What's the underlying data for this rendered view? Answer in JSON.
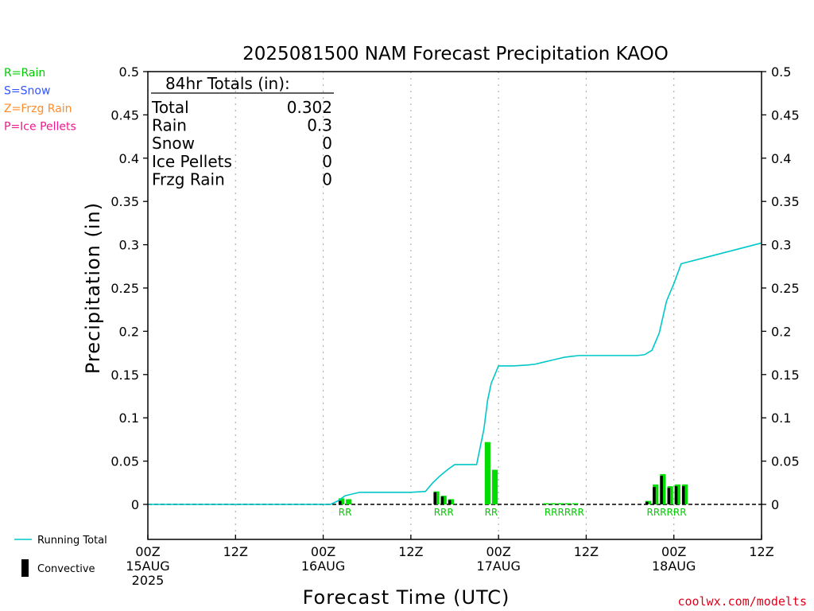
{
  "chart_data": {
    "type": "bar",
    "title": "2025081500 NAM Forecast Precipitation KAOO",
    "ylabel": "Precipitation (in)",
    "xlabel": "Forecast Time (UTC)",
    "ylim": [
      -0.04,
      0.5
    ],
    "xlim_hours": [
      0,
      84
    ],
    "y_ticks": [
      0,
      0.05,
      0.1,
      0.15,
      0.2,
      0.25,
      0.3,
      0.35,
      0.4,
      0.45,
      0.5
    ],
    "y_tick_labels": [
      "0",
      "0.05",
      "0.1",
      "0.15",
      "0.2",
      "0.25",
      "0.3",
      "0.35",
      "0.4",
      "0.45",
      "0.5"
    ],
    "x_ticks": [
      {
        "hour": 0,
        "lines": [
          "00Z",
          "15AUG",
          "2025"
        ]
      },
      {
        "hour": 12,
        "lines": [
          "12Z"
        ]
      },
      {
        "hour": 24,
        "lines": [
          "00Z",
          "16AUG"
        ]
      },
      {
        "hour": 36,
        "lines": [
          "12Z"
        ]
      },
      {
        "hour": 48,
        "lines": [
          "00Z",
          "17AUG"
        ]
      },
      {
        "hour": 60,
        "lines": [
          "12Z"
        ]
      },
      {
        "hour": 72,
        "lines": [
          "00Z",
          "18AUG"
        ]
      },
      {
        "hour": 84,
        "lines": [
          "12Z"
        ]
      }
    ],
    "grid": "vertical dotted at 12Z and 00Z",
    "bars": [
      {
        "hour": 26.5,
        "value": 0.007,
        "convective": 0.004
      },
      {
        "hour": 27.5,
        "value": 0.006,
        "convective": 0.0
      },
      {
        "hour": 39.5,
        "value": 0.015,
        "convective": 0.014
      },
      {
        "hour": 40.5,
        "value": 0.01,
        "convective": 0.009
      },
      {
        "hour": 41.5,
        "value": 0.006,
        "convective": 0.005
      },
      {
        "hour": 46.5,
        "value": 0.072,
        "convective": 0.0
      },
      {
        "hour": 47.5,
        "value": 0.04,
        "convective": 0.0
      },
      {
        "hour": 54.5,
        "value": 0.001,
        "convective": 0.0
      },
      {
        "hour": 55.5,
        "value": 0.001,
        "convective": 0.0
      },
      {
        "hour": 56.5,
        "value": 0.001,
        "convective": 0.0
      },
      {
        "hour": 57.5,
        "value": 0.001,
        "convective": 0.0
      },
      {
        "hour": 58.5,
        "value": 0.001,
        "convective": 0.0
      },
      {
        "hour": 68.5,
        "value": 0.004,
        "convective": 0.003
      },
      {
        "hour": 69.5,
        "value": 0.023,
        "convective": 0.02
      },
      {
        "hour": 70.5,
        "value": 0.035,
        "convective": 0.033
      },
      {
        "hour": 71.5,
        "value": 0.021,
        "convective": 0.019
      },
      {
        "hour": 72.5,
        "value": 0.023,
        "convective": 0.021
      },
      {
        "hour": 73.5,
        "value": 0.023,
        "convective": 0.021
      }
    ],
    "precip_type_labels": [
      {
        "hour": 27,
        "text": "RR"
      },
      {
        "hour": 40.5,
        "text": "RRR"
      },
      {
        "hour": 47,
        "text": "RR"
      },
      {
        "hour": 57,
        "text": "RRRRRR"
      },
      {
        "hour": 71,
        "text": "RRRRRR"
      }
    ],
    "running_total": {
      "name": "Running Total",
      "x": [
        0,
        25,
        26,
        27,
        29,
        36,
        38,
        39,
        40,
        41,
        42,
        43,
        45,
        46,
        46.5,
        47,
        48,
        50,
        52,
        53,
        54,
        55,
        56,
        57,
        58,
        59,
        60,
        66,
        67,
        68,
        69,
        70,
        71,
        72,
        73,
        84
      ],
      "y": [
        0,
        0,
        0.004,
        0.01,
        0.014,
        0.014,
        0.015,
        0.025,
        0.033,
        0.04,
        0.046,
        0.046,
        0.046,
        0.087,
        0.12,
        0.14,
        0.16,
        0.16,
        0.161,
        0.162,
        0.164,
        0.166,
        0.168,
        0.17,
        0.171,
        0.172,
        0.172,
        0.172,
        0.172,
        0.173,
        0.178,
        0.198,
        0.235,
        0.255,
        0.278,
        0.302
      ]
    },
    "totals_box": {
      "header": "84hr Totals (in):",
      "rows": [
        {
          "label": "Total",
          "value": "0.302"
        },
        {
          "label": "Rain",
          "value": "0.3"
        },
        {
          "label": "Snow",
          "value": "0"
        },
        {
          "label": "Ice Pellets",
          "value": "0"
        },
        {
          "label": "Frzg Rain",
          "value": "0"
        }
      ]
    },
    "type_legend": [
      {
        "text": "R=Rain",
        "color": "#00cc00"
      },
      {
        "text": "S=Snow",
        "color": "#3355ff"
      },
      {
        "text": "Z=Frzg Rain",
        "color": "#ff8c2a"
      },
      {
        "text": "P=Ice Pellets",
        "color": "#ee1a8c"
      }
    ],
    "series_legend": [
      {
        "text": "Running Total",
        "color": "#00c8c8",
        "kind": "line"
      },
      {
        "text": "Convective",
        "color": "#000000",
        "kind": "bar"
      }
    ],
    "colors": {
      "rain_bar": "#00dd00",
      "convective": "#000000",
      "running_total": "#00c8c8"
    },
    "credit": "coolwx.com/modelts"
  }
}
